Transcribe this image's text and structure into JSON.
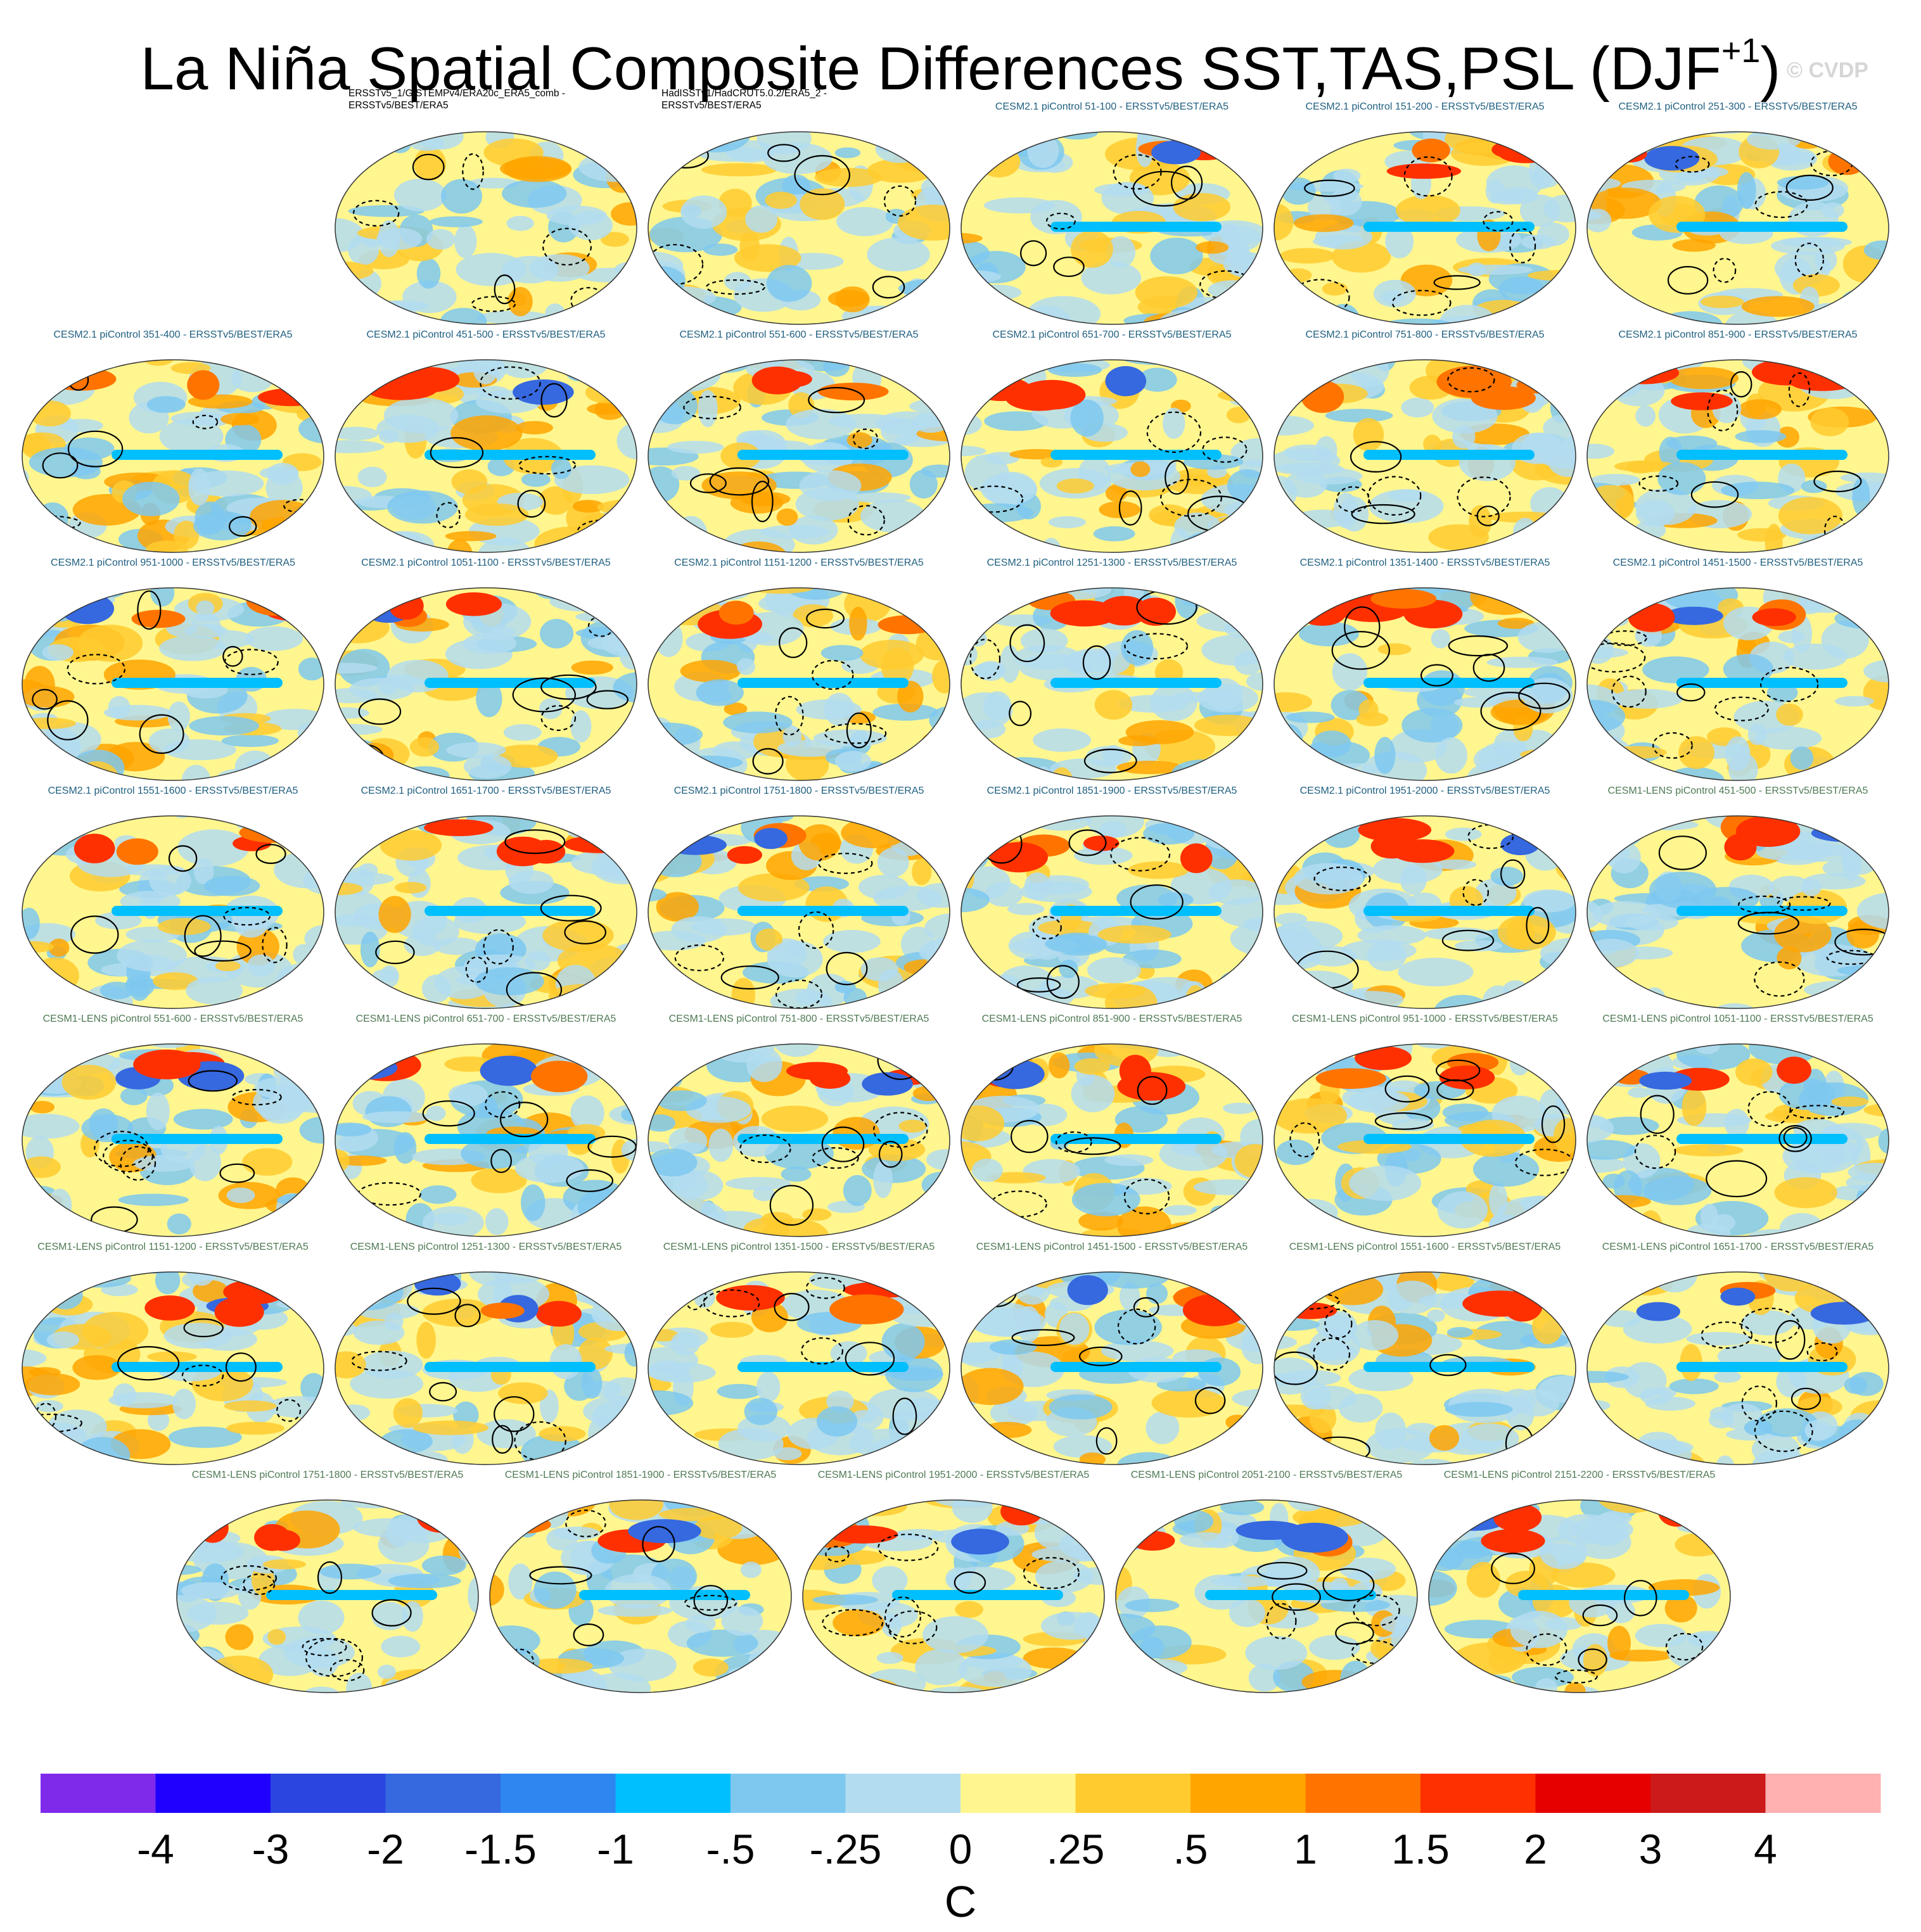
{
  "title": {
    "main": "La Niña Spatial Composite Differences SST,TAS,PSL (DJF",
    "sup": "+1",
    "close": ")"
  },
  "watermark": "© CVDP",
  "chart_data": {
    "type": "map_panels",
    "title": "La Niña Spatial Composite Differences SST,TAS,PSL (DJF+1)",
    "units": "C",
    "colorbar": {
      "levels": [
        "-4",
        "-3",
        "-2",
        "-1.5",
        "-1",
        "-.5",
        "-.25",
        "0",
        ".25",
        ".5",
        "1",
        "1.5",
        "2",
        "3",
        "4"
      ],
      "colors": [
        "#7f2aeb",
        "#1f00ff",
        "#2b46e0",
        "#3668df",
        "#2f86f0",
        "#00bfff",
        "#7ec8f0",
        "#b3dcf0",
        "#fff68f",
        "#ffcb2f",
        "#ffa500",
        "#ff7400",
        "#ff3000",
        "#e60000",
        "#cc1a1a",
        "#ffb0b0"
      ],
      "label": "C"
    },
    "panels": [
      {
        "label": "ERSSTv5_1/GISTEMPv4/ERA20c_ERA5_comb -\nERSSTv5/BEST/ERA5",
        "group": "obs"
      },
      {
        "label": "HadISSTv1/HadCRUT5.0.2/ERA5_2 -\nERSSTv5/BEST/ERA5",
        "group": "obs"
      },
      {
        "label": "CESM2.1 piControl 51-100 - ERSSTv5/BEST/ERA5",
        "group": "cesm2"
      },
      {
        "label": "CESM2.1 piControl 151-200 - ERSSTv5/BEST/ERA5",
        "group": "cesm2"
      },
      {
        "label": "CESM2.1 piControl 251-300 - ERSSTv5/BEST/ERA5",
        "group": "cesm2"
      },
      {
        "label": "CESM2.1 piControl 351-400 - ERSSTv5/BEST/ERA5",
        "group": "cesm2"
      },
      {
        "label": "CESM2.1 piControl 451-500 - ERSSTv5/BEST/ERA5",
        "group": "cesm2"
      },
      {
        "label": "CESM2.1 piControl 551-600 - ERSSTv5/BEST/ERA5",
        "group": "cesm2"
      },
      {
        "label": "CESM2.1 piControl 651-700 - ERSSTv5/BEST/ERA5",
        "group": "cesm2"
      },
      {
        "label": "CESM2.1 piControl 751-800 - ERSSTv5/BEST/ERA5",
        "group": "cesm2"
      },
      {
        "label": "CESM2.1 piControl 851-900 - ERSSTv5/BEST/ERA5",
        "group": "cesm2"
      },
      {
        "label": "CESM2.1 piControl 951-1000 - ERSSTv5/BEST/ERA5",
        "group": "cesm2"
      },
      {
        "label": "CESM2.1 piControl 1051-1100 - ERSSTv5/BEST/ERA5",
        "group": "cesm2"
      },
      {
        "label": "CESM2.1 piControl 1151-1200 - ERSSTv5/BEST/ERA5",
        "group": "cesm2"
      },
      {
        "label": "CESM2.1 piControl 1251-1300 - ERSSTv5/BEST/ERA5",
        "group": "cesm2"
      },
      {
        "label": "CESM2.1 piControl 1351-1400 - ERSSTv5/BEST/ERA5",
        "group": "cesm2"
      },
      {
        "label": "CESM2.1 piControl 1451-1500 - ERSSTv5/BEST/ERA5",
        "group": "cesm2"
      },
      {
        "label": "CESM2.1 piControl 1551-1600 - ERSSTv5/BEST/ERA5",
        "group": "cesm2"
      },
      {
        "label": "CESM2.1 piControl 1651-1700 - ERSSTv5/BEST/ERA5",
        "group": "cesm2"
      },
      {
        "label": "CESM2.1 piControl 1751-1800 - ERSSTv5/BEST/ERA5",
        "group": "cesm2"
      },
      {
        "label": "CESM2.1 piControl 1851-1900 - ERSSTv5/BEST/ERA5",
        "group": "cesm2"
      },
      {
        "label": "CESM2.1 piControl 1951-2000 - ERSSTv5/BEST/ERA5",
        "group": "cesm2"
      },
      {
        "label": "CESM1-LENS piControl 451-500 - ERSSTv5/BEST/ERA5",
        "group": "cesm1"
      },
      {
        "label": "CESM1-LENS piControl 551-600 - ERSSTv5/BEST/ERA5",
        "group": "cesm1"
      },
      {
        "label": "CESM1-LENS piControl 651-700 - ERSSTv5/BEST/ERA5",
        "group": "cesm1"
      },
      {
        "label": "CESM1-LENS piControl 751-800 - ERSSTv5/BEST/ERA5",
        "group": "cesm1"
      },
      {
        "label": "CESM1-LENS piControl 851-900 - ERSSTv5/BEST/ERA5",
        "group": "cesm1"
      },
      {
        "label": "CESM1-LENS piControl 951-1000 - ERSSTv5/BEST/ERA5",
        "group": "cesm1"
      },
      {
        "label": "CESM1-LENS piControl 1051-1100 - ERSSTv5/BEST/ERA5",
        "group": "cesm1"
      },
      {
        "label": "CESM1-LENS piControl 1151-1200 - ERSSTv5/BEST/ERA5",
        "group": "cesm1"
      },
      {
        "label": "CESM1-LENS piControl 1251-1300 - ERSSTv5/BEST/ERA5",
        "group": "cesm1"
      },
      {
        "label": "CESM1-LENS piControl 1351-1500 - ERSSTv5/BEST/ERA5",
        "group": "cesm1"
      },
      {
        "label": "CESM1-LENS piControl 1451-1500 - ERSSTv5/BEST/ERA5",
        "group": "cesm1"
      },
      {
        "label": "CESM1-LENS piControl 1551-1600 - ERSSTv5/BEST/ERA5",
        "group": "cesm1"
      },
      {
        "label": "CESM1-LENS piControl 1651-1700 - ERSSTv5/BEST/ERA5",
        "group": "cesm1"
      },
      {
        "label": "CESM1-LENS piControl 1751-1800 - ERSSTv5/BEST/ERA5",
        "group": "cesm1"
      },
      {
        "label": "CESM1-LENS piControl 1851-1900 - ERSSTv5/BEST/ERA5",
        "group": "cesm1"
      },
      {
        "label": "CESM1-LENS piControl 1951-2000 - ERSSTv5/BEST/ERA5",
        "group": "cesm1"
      },
      {
        "label": "CESM1-LENS piControl 2051-2100 - ERSSTv5/BEST/ERA5",
        "group": "cesm1"
      },
      {
        "label": "CESM1-LENS piControl 2151-2200 - ERSSTv5/BEST/ERA5",
        "group": "cesm1"
      }
    ],
    "label_colors": {
      "obs": "#000000",
      "cesm2": "#1f5f80",
      "cesm1": "#4f7a55"
    }
  }
}
